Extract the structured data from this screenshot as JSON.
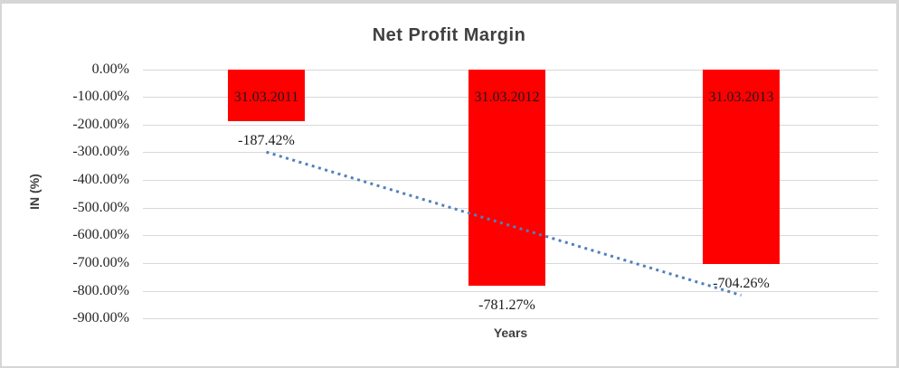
{
  "chart_data": {
    "type": "bar",
    "title": "Net Profit Margin",
    "xlabel": "Years",
    "ylabel": "IN (%)",
    "categories": [
      "31.03.2011",
      "31.03.2012",
      "31.03.2013"
    ],
    "series": [
      {
        "name": "Net Profit Margin",
        "values": [
          -187.42,
          -781.27,
          -704.26
        ]
      }
    ],
    "data_labels": [
      "-187.42%",
      "-781.27%",
      "-704.26%"
    ],
    "yticks": [
      "0.00%",
      "-100.00%",
      "-200.00%",
      "-300.00%",
      "-400.00%",
      "-500.00%",
      "-600.00%",
      "-700.00%",
      "-800.00%",
      "-900.00%"
    ],
    "ylim": [
      -900,
      0
    ],
    "ytick_step": 100,
    "grid": true,
    "legend": "none",
    "colors": {
      "bar": "#ff0000",
      "gridline": "#d9d9d9",
      "trendline": "#4f81bd",
      "title_text": "#3f3f3f",
      "label_text": "#1a1a1a"
    },
    "trendline": {
      "type": "linear",
      "style": "dotted",
      "start_value_pct": -299.2,
      "end_value_pct": -816.1
    }
  }
}
